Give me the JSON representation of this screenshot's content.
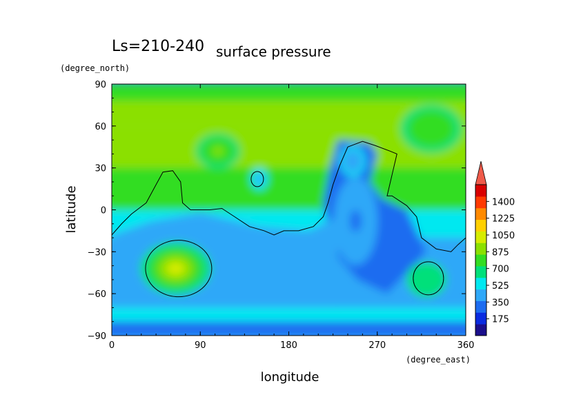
{
  "chart_data": {
    "type": "heatmap",
    "title": "surface pressure",
    "subtitle": "Ls=210-240",
    "xlabel": "longitude",
    "ylabel": "latitude",
    "x_units": "(degree_east)",
    "y_units": "(degree_north)",
    "xlim": [
      0,
      360
    ],
    "ylim": [
      -90,
      90
    ],
    "x_ticks": [
      0,
      90,
      180,
      270,
      360
    ],
    "y_ticks": [
      -90,
      -60,
      -30,
      0,
      30,
      60,
      90
    ],
    "x_tick_labels": [
      "0",
      "90",
      "180",
      "270",
      "360"
    ],
    "y_tick_labels": [
      "−90",
      "−60",
      "−30",
      "0",
      "30",
      "60",
      "90"
    ],
    "colorbar": {
      "tick_values": [
        175,
        350,
        525,
        700,
        875,
        1050,
        1225,
        1400
      ],
      "tick_labels": [
        "175",
        "350",
        "525",
        "700",
        "875",
        "1050",
        "1225",
        "1400"
      ],
      "range": [
        0,
        1575
      ],
      "extend": "max",
      "colors": [
        "#1a0f8c",
        "#0a2be0",
        "#1c6cf0",
        "#2fa8f8",
        "#00e8f0",
        "#00e07a",
        "#33dd22",
        "#8be000",
        "#d6ec00",
        "#ffd000",
        "#ff8a00",
        "#ff3a00",
        "#d90000"
      ]
    },
    "contour_level": 525,
    "grid": false,
    "features": [
      {
        "lon": 65,
        "lat": -42,
        "value": 1080
      },
      {
        "lon": 108,
        "lat": 42,
        "value": 860
      },
      {
        "lon": 325,
        "lat": 58,
        "value": 850
      },
      {
        "lon": 320,
        "lat": -50,
        "value": 720
      },
      {
        "lon": 150,
        "lat": 22,
        "value": 440
      },
      {
        "lon": 248,
        "lat": -8,
        "value": 280
      },
      {
        "lon": 245,
        "lat": 35,
        "value": 390
      }
    ]
  }
}
